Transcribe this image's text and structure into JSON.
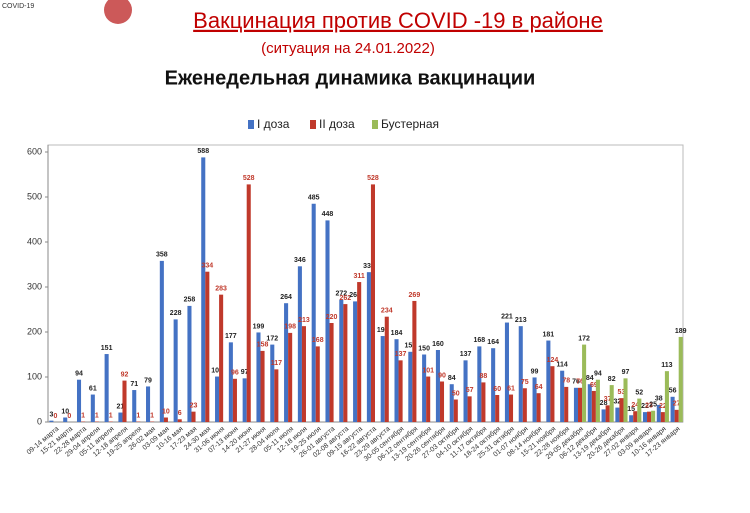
{
  "chart_data": {
    "type": "bar",
    "logo_text": "COVID-19",
    "title": "Вакцинация против COVID -19 в районе",
    "subtitle": "(ситуация на 24.01.2022)",
    "chart_title": "Еженедельная динамика вакцинации",
    "categories": [
      "09-14 марта",
      "15-21 марта",
      "22-28 марта",
      "29-04 апреля",
      "05-11 апреля",
      "12-18 апреля",
      "19-25 апреля",
      "26-02 мая",
      "03-09 мая",
      "10-16 мая",
      "17-23 мая",
      "24-30 мая",
      "31-06 июня",
      "07-13 июня",
      "14-20 июня",
      "21-27 июня",
      "28-04 июля",
      "05-11 июля",
      "12-18 июля",
      "19-25 июля",
      "26-01 августа",
      "02-08 августа",
      "09-15 августа",
      "16-22 августа",
      "23-29 августа",
      "30-05 сентября",
      "06-12 сентября",
      "13-19 сентября",
      "20-26 сентября",
      "27-03 октября",
      "04-10 октября",
      "11-17 октября",
      "18-24 октября",
      "25-31 октября",
      "01-07 ноября",
      "08-14 ноября",
      "15-21 ноября",
      "22-28 ноября",
      "29-05 декабря",
      "06-12 декабря",
      "13-19 декабря",
      "20-26 декабря",
      "27-02 января",
      "03-09 января",
      "10-16 января",
      "17-23 января"
    ],
    "series": [
      {
        "name": "I доза",
        "color": "#4472c4",
        "values": [
          3,
          10,
          94,
          61,
          151,
          21,
          71,
          79,
          358,
          228,
          258,
          588,
          101,
          177,
          97,
          199,
          172,
          264,
          346,
          485,
          448,
          272,
          268,
          333,
          191,
          184,
          156,
          150,
          160,
          84,
          137,
          168,
          164,
          221,
          213,
          99,
          181,
          114,
          76,
          84,
          28,
          32,
          15,
          22,
          38,
          56
        ]
      },
      {
        "name": "II доза",
        "color": "#c0392b",
        "values": [
          0,
          0,
          1,
          1,
          1,
          92,
          1,
          1,
          10,
          6,
          23,
          334,
          283,
          96,
          528,
          158,
          117,
          198,
          213,
          168,
          220,
          262,
          311,
          528,
          234,
          137,
          269,
          101,
          90,
          50,
          57,
          88,
          60,
          61,
          75,
          64,
          124,
          78,
          76,
          69,
          37,
          53,
          24,
          23,
          22,
          27
        ]
      },
      {
        "name": "Бустерная",
        "color": "#9bbb59",
        "values": [
          null,
          null,
          null,
          null,
          null,
          null,
          null,
          null,
          null,
          null,
          null,
          null,
          null,
          null,
          null,
          null,
          null,
          null,
          null,
          null,
          null,
          null,
          null,
          null,
          null,
          null,
          null,
          null,
          null,
          null,
          null,
          null,
          null,
          null,
          null,
          null,
          null,
          null,
          172,
          94,
          82,
          97,
          52,
          25,
          113,
          189
        ]
      }
    ],
    "ylim": [
      0,
      600
    ],
    "yticks": [
      0,
      100,
      200,
      300,
      400,
      500,
      600
    ],
    "grid": false,
    "legend": "top"
  }
}
